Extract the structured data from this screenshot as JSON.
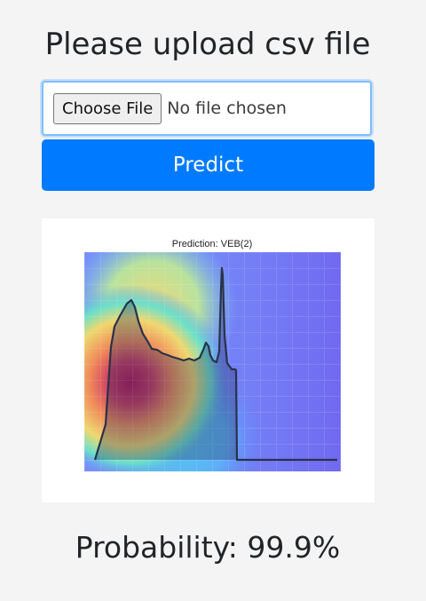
{
  "page": {
    "title": "Please upload csv file"
  },
  "upload": {
    "button_label": "Choose File",
    "status_text": "No file chosen"
  },
  "predict": {
    "label": "Predict"
  },
  "result_plot": {
    "title": "Prediction: VEB(2)"
  },
  "result": {
    "probability_text": "Probability: 99.9%"
  },
  "colors": {
    "page_background": "#f4f4f4",
    "primary_button": "#007bff",
    "input_focus_border": "#80bdff",
    "text": "#212529"
  }
}
